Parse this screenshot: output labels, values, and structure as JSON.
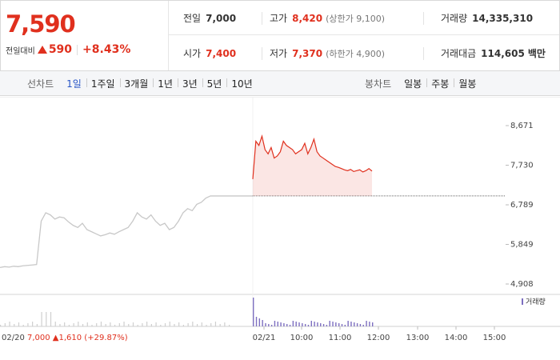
{
  "quote": {
    "price": "7,590",
    "change_label": "전일대비",
    "change": "590",
    "change_rate": "+8.43%"
  },
  "stats": {
    "prev_close_label": "전일",
    "prev_close": "7,000",
    "high_label": "고가",
    "high": "8,420",
    "upper_limit": "(상한가 9,100)",
    "volume_label": "거래량",
    "volume": "14,335,310",
    "open_label": "시가",
    "open": "7,400",
    "low_label": "저가",
    "low": "7,370",
    "lower_limit": "(하한가 4,900)",
    "trade_value_label": "거래대금",
    "trade_value": "114,605",
    "trade_value_unit": "백만"
  },
  "tabs": {
    "line_chart_label": "선차트",
    "line_periods": [
      "1일",
      "1주일",
      "3개월",
      "1년",
      "3년",
      "5년",
      "10년"
    ],
    "active_index": 0,
    "candle_chart_label": "봉차트",
    "candle_periods": [
      "일봉",
      "주봉",
      "월봉"
    ]
  },
  "colors": {
    "up": "#e0301e",
    "active_tab": "#2a56c6",
    "volume_today": "#7d6fc0",
    "prev_day_line": "#c8c8c8"
  },
  "chart_data": {
    "type": "line",
    "yticks": [
      "8,671",
      "7,730",
      "6,789",
      "5,849",
      "4,908"
    ],
    "ylim": [
      4908,
      8671
    ],
    "xticks": [
      "02/21",
      "10:00",
      "11:00",
      "12:00",
      "13:00",
      "14:00",
      "15:00"
    ],
    "prev_day_info": {
      "date": "02/20",
      "close": "7,000",
      "change": "1,610",
      "rate": "(+29.87%)"
    },
    "legend": "거래량",
    "series": [
      {
        "values": [
          5300,
          5320,
          5310,
          5330,
          5320,
          5340,
          5350,
          5360,
          5370,
          6400,
          6600,
          6550,
          6450,
          6500,
          6480,
          6380,
          6300,
          6250,
          6350,
          6200,
          6150,
          6100,
          6050,
          6080,
          6120,
          6090,
          6150,
          6200,
          6250,
          6400,
          6600,
          6500,
          6450,
          6550,
          6400,
          6300,
          6350,
          6200,
          6250,
          6400,
          6600,
          6700,
          6650,
          6800,
          6850,
          6950,
          7000,
          7000,
          7000,
          7000,
          7000
        ]
      },
      {
        "values": [
          7400,
          8300,
          8200,
          8420,
          8100,
          8000,
          8150,
          7900,
          7950,
          8050,
          8300,
          8200,
          8150,
          8100,
          8000,
          8050,
          8100,
          8250,
          8000,
          8150,
          8350,
          8050,
          7950,
          7900,
          7850,
          7800,
          7750,
          7700,
          7680,
          7650,
          7620,
          7600,
          7630,
          7580,
          7600,
          7620,
          7570,
          7600,
          7650,
          7590
        ]
      }
    ]
  }
}
